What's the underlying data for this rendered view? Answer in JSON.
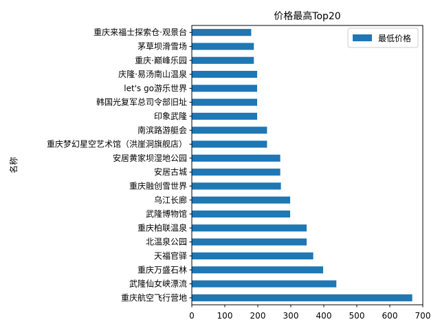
{
  "chart_data": {
    "type": "bar",
    "orientation": "horizontal",
    "title": "价格最高Top20",
    "xlabel": "",
    "ylabel": "名称",
    "xlim": [
      0,
      700
    ],
    "xticks": [
      0,
      100,
      200,
      300,
      400,
      500,
      600,
      700
    ],
    "grid": false,
    "legend_position": "top-right",
    "bar_color": "#1f77b4",
    "categories": [
      "重庆航空飞行营地",
      "武隆仙女峡漂流",
      "重庆万盛石林",
      "天福官驿",
      "北温泉公园",
      "重庆柏联温泉",
      "武隆博物馆",
      "乌江长廊",
      "重庆融创雪世界",
      "安居古城",
      "安居黄家坝湿地公园",
      "重庆梦幻星空艺术馆（洪崖洞旗舰店）",
      "南滨路游艇会",
      "印象武隆",
      "韩国光复军总司令部旧址",
      "let's go游乐世界",
      "庆隆·易汤南山温泉",
      "重庆·巅峰乐园",
      "茅草坝滑雪场",
      "重庆来福士探索仓·观景台"
    ],
    "series": [
      {
        "name": "最低价格",
        "values": [
          668,
          438,
          398,
          368,
          348,
          348,
          298,
          298,
          270,
          268,
          268,
          228,
          228,
          198,
          198,
          198,
          198,
          188,
          188,
          180
        ]
      }
    ]
  }
}
